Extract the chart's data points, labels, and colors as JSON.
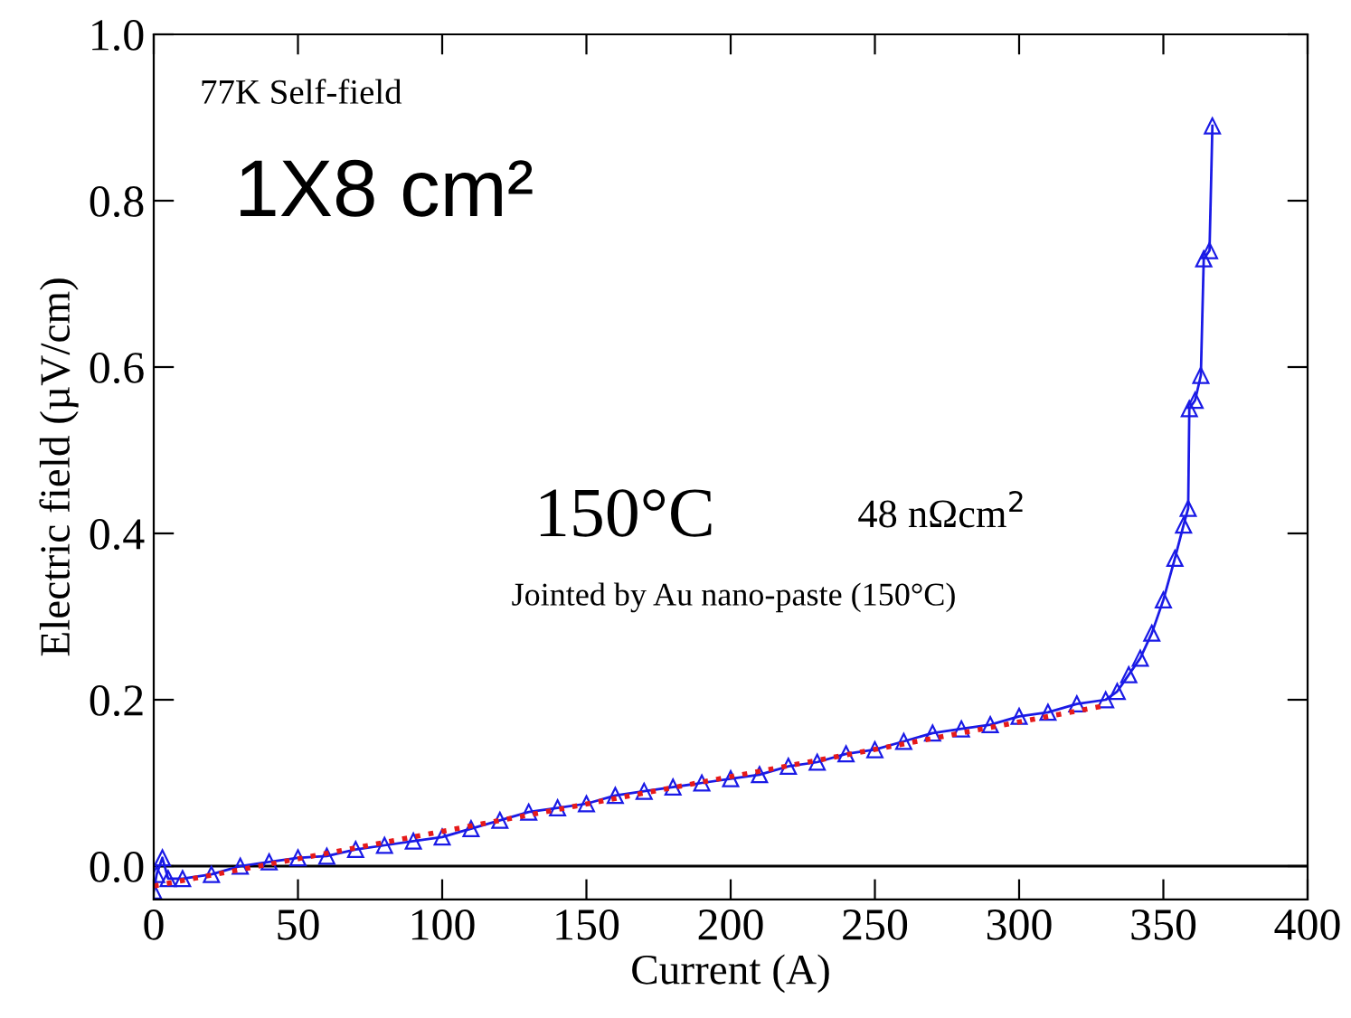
{
  "chart_data": {
    "type": "line",
    "xlabel": "Current (A)",
    "ylabel": "Electric field (µV/cm)",
    "xlim": [
      0,
      400
    ],
    "ylim": [
      -0.04,
      1.0
    ],
    "xticks": [
      0,
      50,
      100,
      150,
      200,
      250,
      300,
      350,
      400
    ],
    "yticks": [
      {
        "value": 0,
        "label": "0.0"
      },
      {
        "value": 0.2,
        "label": "0.2"
      },
      {
        "value": 0.4,
        "label": "0.4"
      },
      {
        "value": 0.6,
        "label": "0.6"
      },
      {
        "value": 0.8,
        "label": "0.8"
      },
      {
        "value": 1.0,
        "label": "1.0"
      }
    ],
    "grid": false,
    "legend": false,
    "ref_lines": [
      {
        "axis": "y",
        "value": 0,
        "color": "#000000",
        "line_style": "solid"
      }
    ],
    "annotations": [
      "77K Self-field",
      "1X8 cm²",
      "150°C",
      "48 nΩcm$^{2}$",
      "Jointed by Au nano-paste (150°C)"
    ],
    "series": [
      {
        "color": "#1a1ae6",
        "marker": "triangle",
        "line_style": "solid",
        "x": [
          0,
          1,
          3,
          5,
          10,
          20,
          30,
          40,
          50,
          60,
          70,
          80,
          90,
          100,
          110,
          120,
          130,
          140,
          150,
          160,
          170,
          180,
          190,
          200,
          210,
          220,
          230,
          240,
          250,
          260,
          270,
          280,
          290,
          300,
          310,
          320,
          330,
          334,
          338,
          342,
          346,
          350,
          354,
          357,
          358.6,
          359,
          361,
          363,
          364,
          366,
          367
        ],
        "values": [
          -0.03,
          -0.01,
          0.01,
          -0.015,
          -0.015,
          -0.01,
          0.0,
          0.005,
          0.01,
          0.012,
          0.02,
          0.025,
          0.03,
          0.035,
          0.045,
          0.055,
          0.065,
          0.07,
          0.075,
          0.085,
          0.09,
          0.095,
          0.1,
          0.105,
          0.11,
          0.12,
          0.125,
          0.135,
          0.14,
          0.15,
          0.16,
          0.165,
          0.17,
          0.18,
          0.185,
          0.195,
          0.2,
          0.21,
          0.23,
          0.25,
          0.28,
          0.32,
          0.37,
          0.41,
          0.43,
          0.55,
          0.56,
          0.59,
          0.73,
          0.74,
          0.89
        ]
      },
      {
        "color": "#e61a1a",
        "marker": "none",
        "line_style": "dotted",
        "x": [
          0,
          330
        ],
        "values": [
          -0.024,
          0.193
        ]
      }
    ]
  }
}
